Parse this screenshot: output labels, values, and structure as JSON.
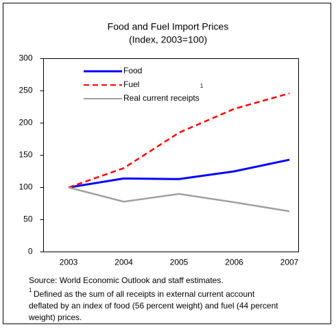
{
  "chart_data": {
    "type": "line",
    "title": "Food and Fuel Import Prices",
    "subtitle": "(Index, 2003=100)",
    "categories": [
      "2003",
      "2004",
      "2005",
      "2006",
      "2007"
    ],
    "series": [
      {
        "name": "Food",
        "color": "#0000ff",
        "dash": false,
        "values": [
          100,
          114,
          113,
          125,
          143
        ]
      },
      {
        "name": "Fuel",
        "color": "#ff0000",
        "dash": true,
        "values": [
          100,
          130,
          185,
          222,
          246
        ]
      },
      {
        "name": "Real current receipts",
        "color": "#a0a0a0",
        "dash": false,
        "values": [
          100,
          78,
          90,
          77,
          63
        ]
      }
    ],
    "legend_note": "1",
    "ylim": [
      0,
      300
    ],
    "yticks": [
      0,
      50,
      100,
      150,
      200,
      250,
      300
    ],
    "grid": false,
    "source": "Source: World Economic Outlook and staff estimates.",
    "footnote_marker": "1",
    "footnote_lines": [
      "Defined as the sum of all receipts in external current account",
      "deflated by an index of food (56 percent weight) and fuel (44 percent",
      "weight) prices."
    ]
  }
}
